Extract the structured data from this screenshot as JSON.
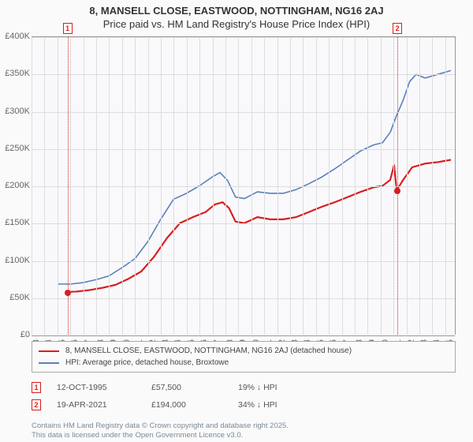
{
  "title": "8, MANSELL CLOSE, EASTWOOD, NOTTINGHAM, NG16 2AJ",
  "subtitle": "Price paid vs. HM Land Registry's House Price Index (HPI)",
  "chart": {
    "type": "line",
    "background_color": "#f9f9fc",
    "grid_color": "#dddddd",
    "axis_color": "#999999",
    "xlim": [
      1993,
      2025.8
    ],
    "ylim": [
      0,
      400000
    ],
    "ytick_step": 50000,
    "y_ticks": [
      "£0",
      "£50K",
      "£100K",
      "£150K",
      "£200K",
      "£250K",
      "£300K",
      "£350K",
      "£400K"
    ],
    "x_ticks": [
      "1993",
      "1994",
      "1995",
      "1996",
      "1997",
      "1998",
      "1999",
      "2000",
      "2001",
      "2002",
      "2003",
      "2004",
      "2005",
      "2006",
      "2007",
      "2008",
      "2009",
      "2010",
      "2011",
      "2012",
      "2013",
      "2014",
      "2015",
      "2016",
      "2017",
      "2018",
      "2019",
      "2020",
      "2021",
      "2022",
      "2023",
      "2024",
      "2025"
    ],
    "series": [
      {
        "name": "property",
        "label": "8, MANSELL CLOSE, EASTWOOD, NOTTINGHAM, NG16 2AJ (detached house)",
        "color": "#d81e1e",
        "line_width": 2,
        "data": [
          [
            1995.78,
            57500
          ],
          [
            1996.5,
            58000
          ],
          [
            1997.5,
            60000
          ],
          [
            1998.5,
            63000
          ],
          [
            1999.5,
            67000
          ],
          [
            2000.5,
            75000
          ],
          [
            2001.5,
            85000
          ],
          [
            2002.5,
            105000
          ],
          [
            2003.5,
            130000
          ],
          [
            2004.5,
            150000
          ],
          [
            2005.5,
            158000
          ],
          [
            2006.5,
            165000
          ],
          [
            2007.2,
            175000
          ],
          [
            2007.8,
            178000
          ],
          [
            2008.3,
            170000
          ],
          [
            2008.8,
            152000
          ],
          [
            2009.5,
            150000
          ],
          [
            2010.5,
            158000
          ],
          [
            2011.5,
            155000
          ],
          [
            2012.5,
            155000
          ],
          [
            2013.5,
            158000
          ],
          [
            2014.5,
            165000
          ],
          [
            2015.5,
            172000
          ],
          [
            2016.5,
            178000
          ],
          [
            2017.5,
            185000
          ],
          [
            2018.5,
            192000
          ],
          [
            2019.5,
            198000
          ],
          [
            2020.2,
            200000
          ],
          [
            2020.8,
            208000
          ],
          [
            2021.1,
            228000
          ],
          [
            2021.3,
            194000
          ],
          [
            2021.8,
            208000
          ],
          [
            2022.5,
            225000
          ],
          [
            2023.5,
            230000
          ],
          [
            2024.5,
            232000
          ],
          [
            2025.5,
            235000
          ]
        ]
      },
      {
        "name": "hpi",
        "label": "HPI: Average price, detached house, Broxtowe",
        "color": "#5b7fb8",
        "line_width": 1.6,
        "data": [
          [
            1995.0,
            68000
          ],
          [
            1996.0,
            68000
          ],
          [
            1997.0,
            70000
          ],
          [
            1998.0,
            74000
          ],
          [
            1999.0,
            79000
          ],
          [
            2000.0,
            90000
          ],
          [
            2001.0,
            102000
          ],
          [
            2002.0,
            125000
          ],
          [
            2003.0,
            155000
          ],
          [
            2004.0,
            182000
          ],
          [
            2005.0,
            190000
          ],
          [
            2006.0,
            200000
          ],
          [
            2007.0,
            212000
          ],
          [
            2007.6,
            218000
          ],
          [
            2008.2,
            207000
          ],
          [
            2008.8,
            185000
          ],
          [
            2009.5,
            183000
          ],
          [
            2010.5,
            192000
          ],
          [
            2011.5,
            190000
          ],
          [
            2012.5,
            190000
          ],
          [
            2013.5,
            195000
          ],
          [
            2014.5,
            203000
          ],
          [
            2015.5,
            212000
          ],
          [
            2016.5,
            223000
          ],
          [
            2017.5,
            235000
          ],
          [
            2018.5,
            247000
          ],
          [
            2019.5,
            255000
          ],
          [
            2020.2,
            258000
          ],
          [
            2020.8,
            272000
          ],
          [
            2021.3,
            295000
          ],
          [
            2021.8,
            315000
          ],
          [
            2022.3,
            340000
          ],
          [
            2022.8,
            350000
          ],
          [
            2023.5,
            345000
          ],
          [
            2024.5,
            350000
          ],
          [
            2025.5,
            355000
          ]
        ]
      }
    ],
    "markers": [
      {
        "n": "1",
        "x": 1995.78,
        "y": 57500,
        "color": "#d81e1e"
      },
      {
        "n": "2",
        "x": 2021.3,
        "y": 194000,
        "color": "#d81e1e"
      }
    ]
  },
  "legend": {
    "items": [
      {
        "color": "#d81e1e",
        "label": "8, MANSELL CLOSE, EASTWOOD, NOTTINGHAM, NG16 2AJ (detached house)"
      },
      {
        "color": "#5b7fb8",
        "label": "HPI: Average price, detached house, Broxtowe"
      }
    ]
  },
  "sales": [
    {
      "n": "1",
      "date": "12-OCT-1995",
      "price": "£57,500",
      "diff": "19% ↓ HPI",
      "color": "#d81e1e"
    },
    {
      "n": "2",
      "date": "19-APR-2021",
      "price": "£194,000",
      "diff": "34% ↓ HPI",
      "color": "#d81e1e"
    }
  ],
  "attribution": {
    "line1": "Contains HM Land Registry data © Crown copyright and database right 2025.",
    "line2": "This data is licensed under the Open Government Licence v3.0."
  }
}
